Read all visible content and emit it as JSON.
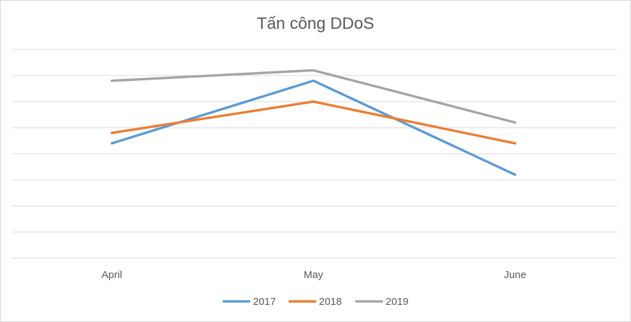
{
  "chart_data": {
    "type": "line",
    "title": "Tấn công DDoS",
    "categories": [
      "April",
      "May",
      "June"
    ],
    "series": [
      {
        "name": "2017",
        "color": "#5b9bd5",
        "values": [
          4.4,
          6.8,
          3.2
        ]
      },
      {
        "name": "2018",
        "color": "#ed7d31",
        "values": [
          4.8,
          6.0,
          4.4
        ]
      },
      {
        "name": "2019",
        "color": "#a5a5a5",
        "values": [
          6.8,
          7.2,
          5.2
        ]
      }
    ],
    "ylim": [
      0,
      8
    ],
    "grid": true,
    "y_tick_labels_shown": false,
    "legend": "bottom"
  }
}
